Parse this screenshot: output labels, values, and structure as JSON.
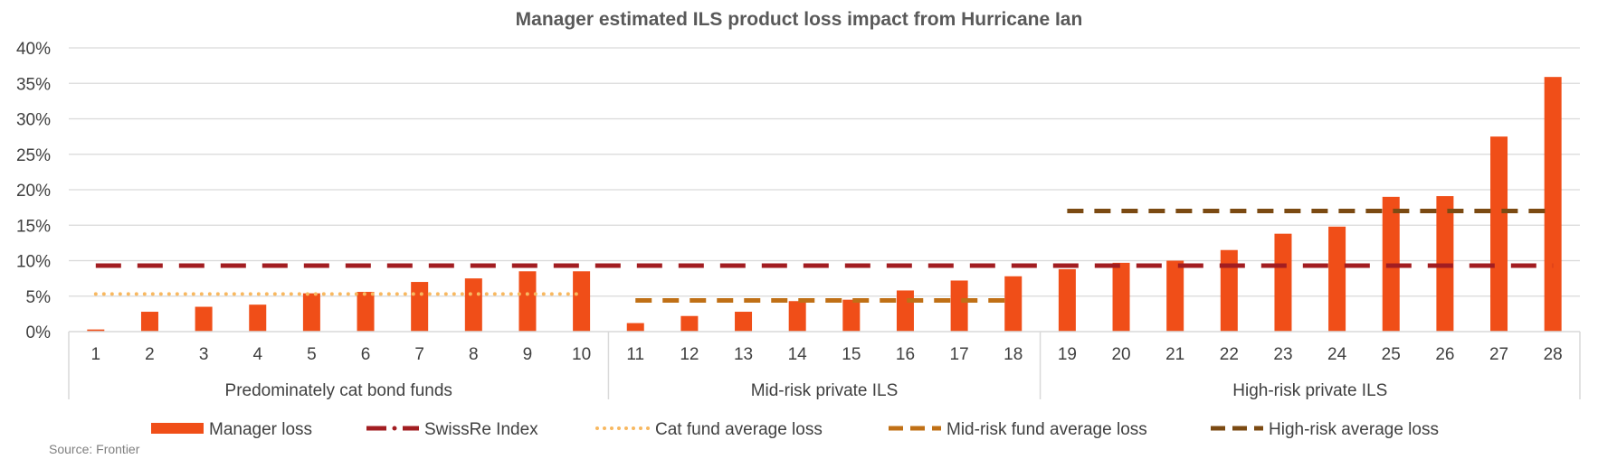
{
  "chart_data": {
    "type": "bar",
    "title": "Manager estimated ILS product loss impact from Hurricane Ian",
    "source": "Source: Frontier",
    "categories": [
      "1",
      "2",
      "3",
      "4",
      "5",
      "6",
      "7",
      "8",
      "9",
      "10",
      "11",
      "12",
      "13",
      "14",
      "15",
      "16",
      "17",
      "18",
      "19",
      "20",
      "21",
      "22",
      "23",
      "24",
      "25",
      "26",
      "27",
      "28"
    ],
    "groups": [
      {
        "label": "Predominately cat bond funds",
        "from": 1,
        "to": 10
      },
      {
        "label": "Mid-risk private ILS",
        "from": 11,
        "to": 18
      },
      {
        "label": "High-risk private ILS",
        "from": 19,
        "to": 28
      }
    ],
    "yticks": [
      "0%",
      "5%",
      "10%",
      "15%",
      "20%",
      "25%",
      "30%",
      "35%",
      "40%"
    ],
    "ylim": [
      0,
      40
    ],
    "grid": true,
    "legend_position": "bottom",
    "series": [
      {
        "name": "Manager loss",
        "style": "bar",
        "color": "#f04e18",
        "values": [
          0.3,
          2.8,
          3.5,
          3.8,
          5.4,
          5.6,
          7.0,
          7.5,
          8.5,
          8.5,
          1.2,
          2.2,
          2.8,
          4.3,
          4.5,
          5.8,
          7.2,
          7.8,
          8.8,
          9.7,
          10.0,
          11.5,
          13.8,
          14.8,
          19.0,
          19.1,
          27.5,
          35.9
        ]
      },
      {
        "name": "SwissRe Index",
        "style": "dash-long",
        "color": "#a21d21",
        "value": 9.3,
        "from": 1,
        "to": 28
      },
      {
        "name": "Cat fund average loss",
        "style": "dotted",
        "color": "#f8b860",
        "value": 5.3,
        "from": 1,
        "to": 10
      },
      {
        "name": "Mid-risk fund average loss",
        "style": "dash",
        "color": "#c07016",
        "value": 4.4,
        "from": 11,
        "to": 18
      },
      {
        "name": "High-risk average loss",
        "style": "dash",
        "color": "#7b4a12",
        "value": 17.0,
        "from": 19,
        "to": 28
      }
    ]
  }
}
